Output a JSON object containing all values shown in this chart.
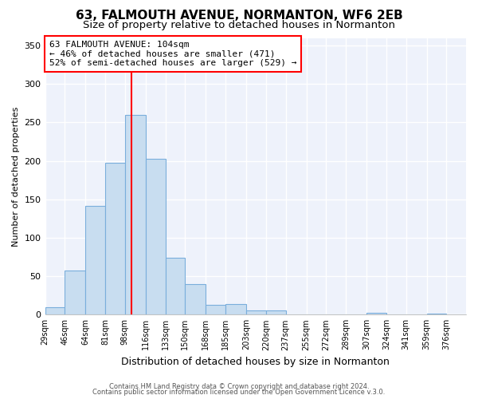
{
  "title": "63, FALMOUTH AVENUE, NORMANTON, WF6 2EB",
  "subtitle": "Size of property relative to detached houses in Normanton",
  "xlabel": "Distribution of detached houses by size in Normanton",
  "ylabel": "Number of detached properties",
  "bin_labels": [
    "29sqm",
    "46sqm",
    "64sqm",
    "81sqm",
    "98sqm",
    "116sqm",
    "133sqm",
    "150sqm",
    "168sqm",
    "185sqm",
    "203sqm",
    "220sqm",
    "237sqm",
    "255sqm",
    "272sqm",
    "289sqm",
    "307sqm",
    "324sqm",
    "341sqm",
    "359sqm",
    "376sqm"
  ],
  "bin_edges": [
    29,
    46,
    64,
    81,
    98,
    116,
    133,
    150,
    168,
    185,
    203,
    220,
    237,
    255,
    272,
    289,
    307,
    324,
    341,
    359,
    376
  ],
  "bar_heights": [
    10,
    57,
    142,
    198,
    260,
    203,
    74,
    40,
    13,
    14,
    6,
    5,
    0,
    0,
    0,
    0,
    2,
    0,
    0,
    1
  ],
  "bar_color": "#c8ddf0",
  "bar_edgecolor": "#7aaedc",
  "vline_x": 104,
  "vline_color": "red",
  "annotation_title": "63 FALMOUTH AVENUE: 104sqm",
  "annotation_line1": "← 46% of detached houses are smaller (471)",
  "annotation_line2": "52% of semi-detached houses are larger (529) →",
  "annotation_box_edgecolor": "red",
  "ylim": [
    0,
    360
  ],
  "yticks": [
    0,
    50,
    100,
    150,
    200,
    250,
    300,
    350
  ],
  "footer1": "Contains HM Land Registry data © Crown copyright and database right 2024.",
  "footer2": "Contains public sector information licensed under the Open Government Licence v.3.0.",
  "background_color": "#eef2fb",
  "grid_color": "#ffffff",
  "title_fontsize": 11,
  "subtitle_fontsize": 9.5,
  "xlabel_fontsize": 9,
  "ylabel_fontsize": 8,
  "footer_fontsize": 6,
  "annot_fontsize": 8
}
